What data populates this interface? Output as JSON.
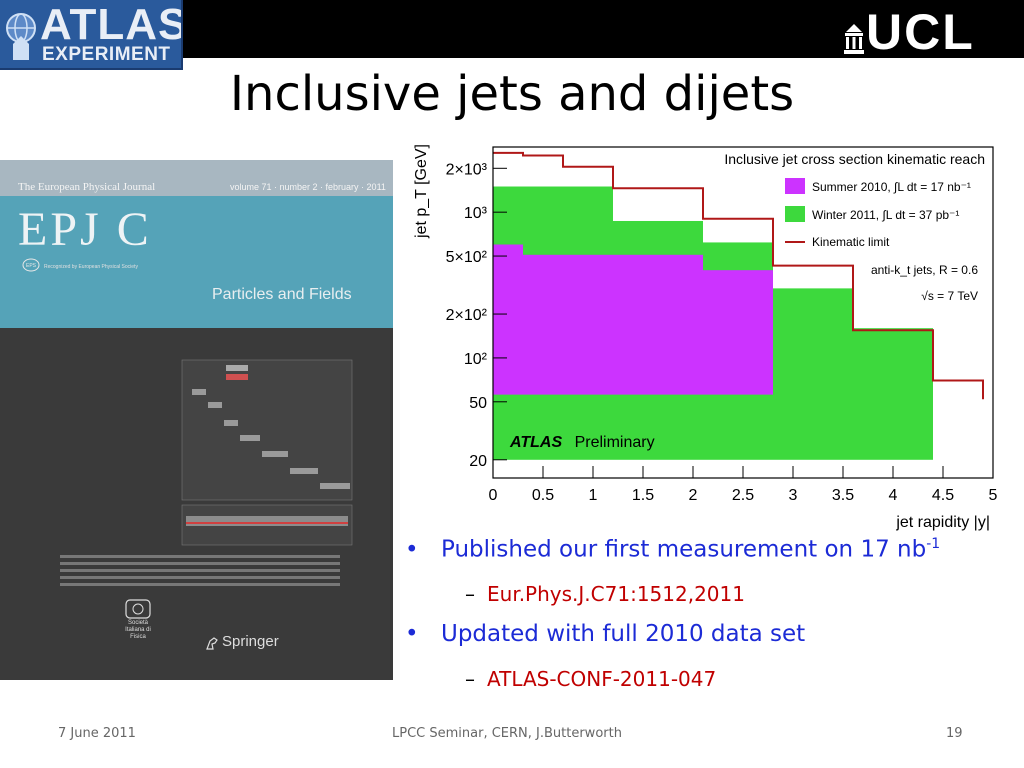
{
  "header": {
    "atlas_logo_word": "ATLAS",
    "atlas_logo_sub": "EXPERIMENT",
    "ucl_logo": "UCL"
  },
  "slide": {
    "title": "Inclusive jets and dijets"
  },
  "cover": {
    "journal": "The European Physical Journal",
    "volume": "volume 71 · number 2 · february · 2011",
    "logo": "EPJ C",
    "society": "Recognized by European Physical Society",
    "section": "Particles and Fields",
    "footer_logo": "Società Italiana di Fisica",
    "publisher": "Springer",
    "icons": [
      "eps-icon",
      "sif-seal-icon",
      "springer-horse-icon"
    ]
  },
  "chart_data": {
    "type": "area",
    "title": "Inclusive jet cross section kinematic reach",
    "xlabel": "jet rapidity |y|",
    "ylabel": "jet p_T [GeV]",
    "x_scale": "linear",
    "y_scale": "log",
    "xlim": [
      0,
      5
    ],
    "ylim": [
      15,
      2800
    ],
    "xticks": [
      "0",
      "0.5",
      "1",
      "1.5",
      "2",
      "2.5",
      "3",
      "3.5",
      "4",
      "4.5",
      "5"
    ],
    "yticks": [
      {
        "value": 20,
        "label": "20"
      },
      {
        "value": 50,
        "label": "50"
      },
      {
        "value": 100,
        "label": "10²"
      },
      {
        "value": 200,
        "label": "2×10²"
      },
      {
        "value": 500,
        "label": "5×10²"
      },
      {
        "value": 1000,
        "label": "10³"
      },
      {
        "value": 2000,
        "label": "2×10³"
      }
    ],
    "series": [
      {
        "name": "Winter 2011, ∫L dt = 37 pb⁻¹",
        "color": "#3dd93d",
        "bins": [
          [
            0,
            1.2,
            1500
          ],
          [
            1.2,
            2.1,
            870
          ],
          [
            2.1,
            2.8,
            620
          ],
          [
            2.8,
            3.6,
            300
          ],
          [
            3.6,
            4.4,
            160
          ]
        ],
        "y_min": 20
      },
      {
        "name": "Summer 2010, ∫L dt = 17 nb⁻¹",
        "color": "#cc33ff",
        "bins": [
          [
            0,
            0.3,
            600
          ],
          [
            0.3,
            1.2,
            510
          ],
          [
            1.2,
            2.1,
            510
          ],
          [
            2.1,
            2.8,
            400
          ]
        ],
        "y_min": 56
      },
      {
        "name": "Kinematic limit",
        "color": "#b01818",
        "type": "step",
        "points": [
          [
            0,
            2550
          ],
          [
            0.3,
            2550
          ],
          [
            0.3,
            2450
          ],
          [
            0.7,
            2450
          ],
          [
            0.7,
            2050
          ],
          [
            1.2,
            2050
          ],
          [
            1.2,
            1460
          ],
          [
            2.1,
            1460
          ],
          [
            2.1,
            900
          ],
          [
            2.8,
            900
          ],
          [
            2.8,
            430
          ],
          [
            3.6,
            430
          ],
          [
            3.6,
            155
          ],
          [
            4.4,
            155
          ],
          [
            4.4,
            70
          ],
          [
            4.9,
            70
          ],
          [
            4.9,
            52
          ]
        ]
      }
    ],
    "legend_position": "top-right",
    "annotations": [
      "anti-k_t jets, R = 0.6",
      "√s = 7 TeV"
    ],
    "watermark": {
      "bold": "ATLAS",
      "normal": "Preliminary"
    }
  },
  "bullets": [
    {
      "text": "Published our first measurement on 17 nb",
      "sup": "-1",
      "sub": "Eur.Phys.J.C71:1512,2011"
    },
    {
      "text": "Updated with full 2010 data set",
      "sup": "",
      "sub": "ATLAS-CONF-2011-047"
    }
  ],
  "footer": {
    "date": "7 June 2011",
    "event": "LPCC Seminar, CERN, J.Butterworth",
    "page": "19"
  },
  "colors": {
    "title_black": "#000000",
    "bullet_blue": "#1c2bd6",
    "sub_red": "#c00000",
    "winter_green": "#3dd93d",
    "summer_magenta": "#cc33ff",
    "kinematic_red": "#b01818"
  }
}
